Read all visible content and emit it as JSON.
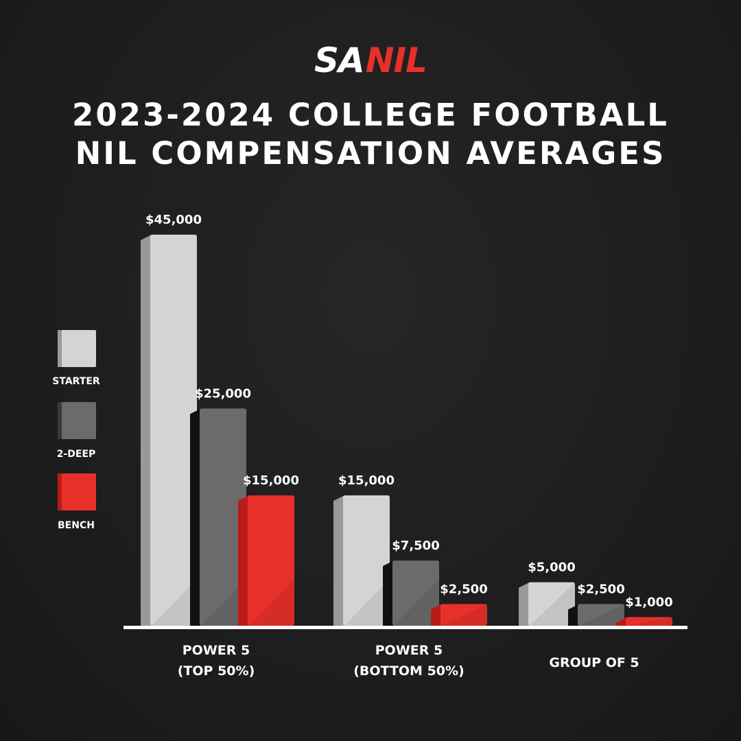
{
  "logo": {
    "part1": "SA",
    "part2": "NIL"
  },
  "title": {
    "line1": "2023-2024 COLLEGE FOOTBALL",
    "line2": "NIL COMPENSATION AVERAGES"
  },
  "colors": {
    "STARTER": "#d4d4d4",
    "2-DEEP": "#6b6b6b",
    "BENCH": "#e8302a",
    "axis": "#ffffff",
    "text": "#ffffff"
  },
  "chart_data": {
    "type": "bar",
    "title": "2023-2024 COLLEGE FOOTBALL NIL COMPENSATION AVERAGES",
    "categories": [
      [
        "POWER 5",
        "(TOP 50%)"
      ],
      [
        "POWER 5",
        "(BOTTOM 50%)"
      ],
      [
        "GROUP OF 5"
      ]
    ],
    "series": [
      {
        "name": "STARTER",
        "values": [
          45000,
          15000,
          5000
        ],
        "labels": [
          "$45,000",
          "$15,000",
          "$5,000"
        ]
      },
      {
        "name": "2-DEEP",
        "values": [
          25000,
          7500,
          2500
        ],
        "labels": [
          "$25,000",
          "$7,500",
          "$2,500"
        ]
      },
      {
        "name": "BENCH",
        "values": [
          15000,
          2500,
          1000
        ],
        "labels": [
          "$15,000",
          "$2,500",
          "$1,000"
        ]
      }
    ],
    "ylim": [
      0,
      45000
    ],
    "grid": false,
    "legend": "left"
  }
}
